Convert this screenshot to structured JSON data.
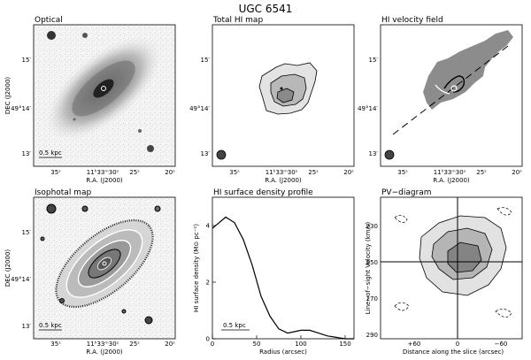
{
  "figure": {
    "title": "UGC 6541",
    "panels": {
      "optical": {
        "title": "Optical",
        "scalebar": "0.5 kpc",
        "xlabel": "R.A. (J2000)",
        "ylabel": "DEC (J2000)",
        "xticks": [
          "35ˢ",
          "11ʰ33ᵐ30ˢ",
          "25ˢ",
          "20ˢ"
        ],
        "yticks": [
          "15′",
          "49°14′",
          "13′"
        ]
      },
      "total_hi": {
        "title": "Total HI map",
        "xlabel": "R.A. (J2000)",
        "xticks": [
          "35ˢ",
          "11ʰ33ᵐ30ˢ",
          "25ˢ",
          "20ˢ"
        ],
        "yticks": [
          "15′",
          "49°14′",
          "13′"
        ]
      },
      "velocity": {
        "title": "HI velocity field",
        "xlabel": "R.A. (J2000)",
        "xticks": [
          "35ˢ",
          "11ʰ33ᵐ30ˢ",
          "25ˢ",
          "20ˢ"
        ],
        "yticks": [
          "15′",
          "49°14′",
          "13′"
        ]
      },
      "isophotal": {
        "title": "Isophotal map",
        "scalebar": "0.5 kpc",
        "xlabel": "R.A. (J2000)",
        "ylabel": "DEC (J2000)",
        "xticks": [
          "35ˢ",
          "11ʰ33ᵐ30ˢ",
          "25ˢ",
          "20ˢ"
        ],
        "yticks": [
          "15′",
          "49°14′",
          "13′"
        ]
      },
      "profile": {
        "title": "HI surface density profile",
        "scalebar": "0.5 kpc",
        "xlabel": "Radius (arcsec)",
        "ylabel": "HI surface density (M⊙ pc⁻²)",
        "xticks": [
          "0",
          "50",
          "100",
          "150"
        ],
        "yticks": [
          "0",
          "2",
          "4"
        ]
      },
      "pv": {
        "title": "PV−diagram",
        "xlabel": "Distance along the slice (arcsec)",
        "ylabel": "Line−of−sight Velocity (km/s)",
        "xticks": [
          "+60",
          "0",
          "−60"
        ],
        "yticks": [
          "230",
          "250",
          "270",
          "290"
        ]
      }
    }
  },
  "chart_data": {
    "type": "line",
    "title": "HI surface density profile",
    "xlabel": "Radius (arcsec)",
    "ylabel": "HI surface density (M⊙ pc⁻²)",
    "xlim": [
      0,
      160
    ],
    "ylim": [
      0,
      5
    ],
    "series": [
      {
        "x": [
          0,
          15,
          25,
          35,
          45,
          55,
          65,
          75,
          85,
          100,
          110,
          120,
          130,
          140,
          150,
          160
        ],
        "y": [
          3.9,
          4.3,
          4.1,
          3.5,
          2.6,
          1.5,
          0.8,
          0.35,
          0.2,
          0.3,
          0.3,
          0.2,
          0.1,
          0.05,
          0.0,
          0.0
        ]
      }
    ]
  }
}
